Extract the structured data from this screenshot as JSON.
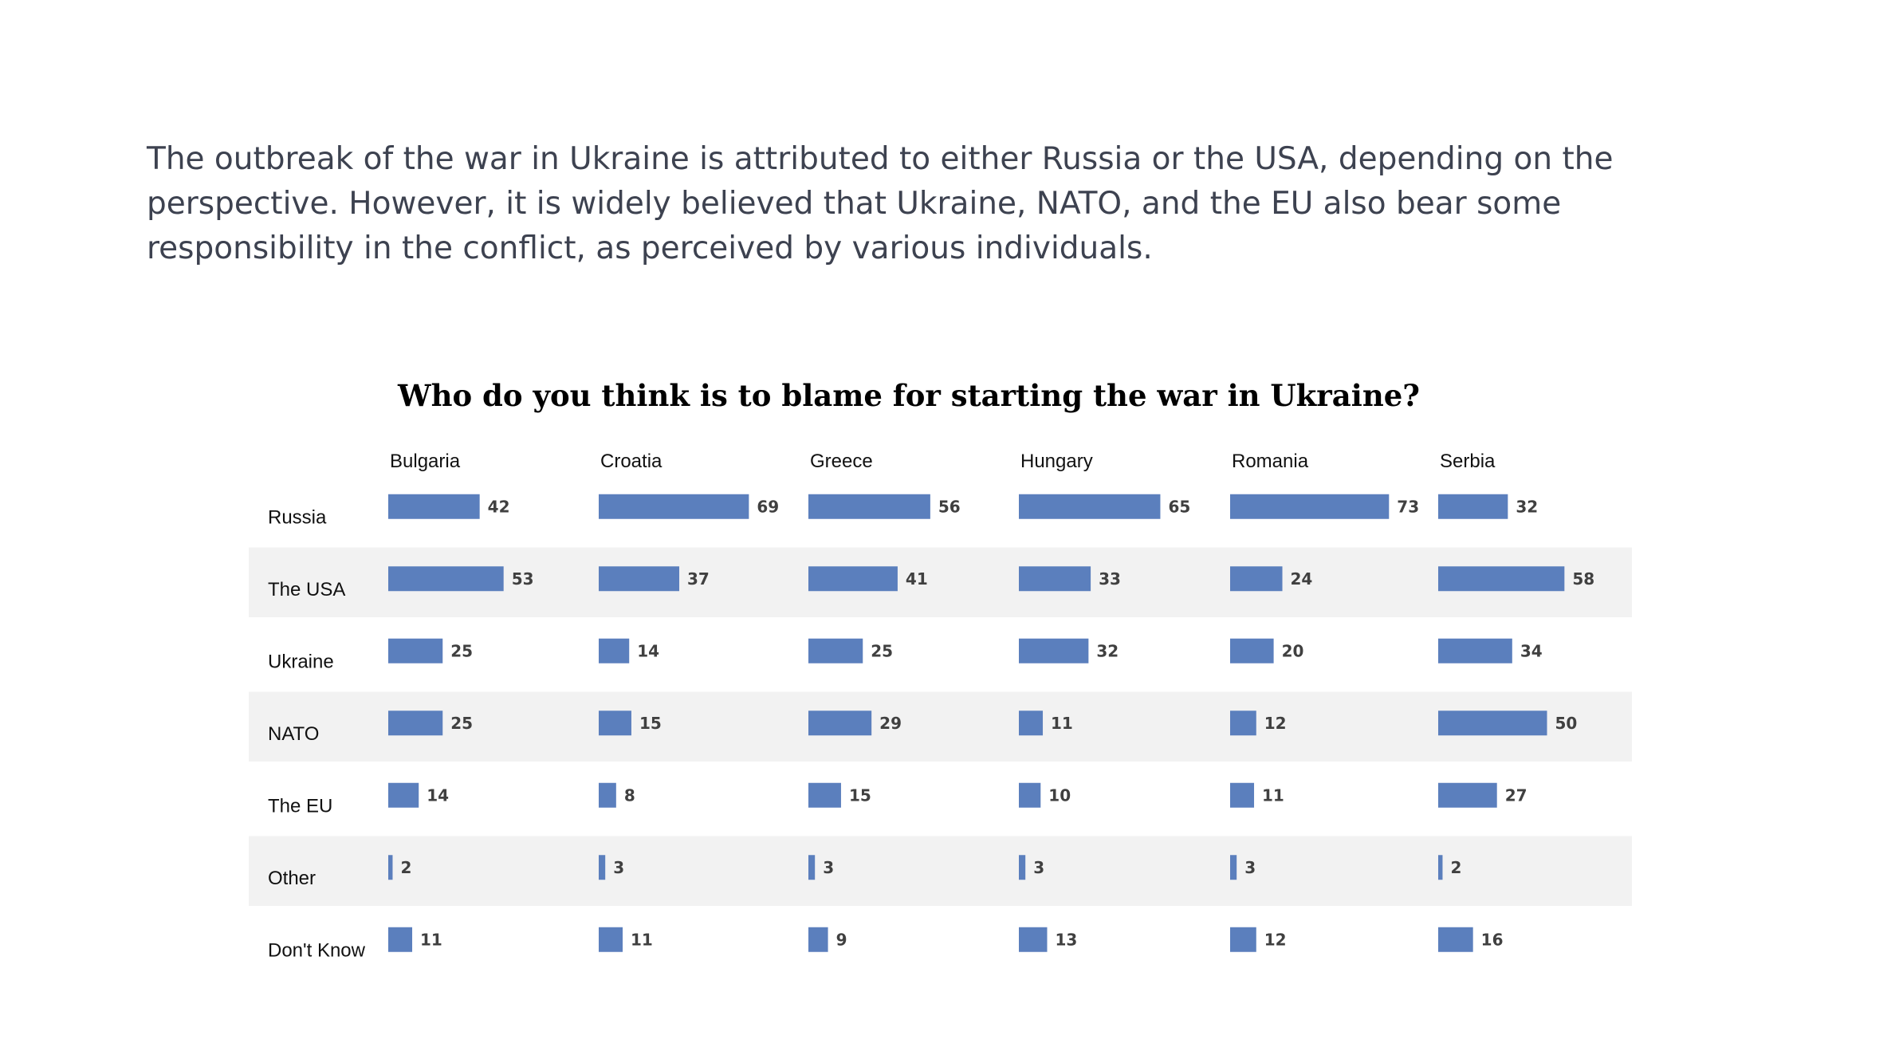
{
  "intro_text": "The outbreak of the war in Ukraine is attributed to either Russia or the USA, depending on the perspective. However, it is widely believed that Ukraine, NATO, and the EU also bear some responsibility in the conflict, as perceived by various individuals.",
  "colors": {
    "bar": "#5b7fbd",
    "band": "#f2f2f2"
  },
  "chart_data": {
    "type": "bar",
    "orientation": "horizontal",
    "layout": "small-multiples",
    "title": "Who do you think is to blame for starting the war in Ukraine?",
    "categories": [
      "Russia",
      "The USA",
      "Ukraine",
      "NATO",
      "The EU",
      "Other",
      "Don't Know"
    ],
    "series": [
      {
        "name": "Bulgaria",
        "values": [
          42,
          53,
          25,
          25,
          14,
          2,
          11
        ]
      },
      {
        "name": "Croatia",
        "values": [
          69,
          37,
          14,
          15,
          8,
          3,
          11
        ]
      },
      {
        "name": "Greece",
        "values": [
          56,
          41,
          25,
          29,
          15,
          3,
          9
        ]
      },
      {
        "name": "Hungary",
        "values": [
          65,
          33,
          32,
          11,
          10,
          3,
          13
        ]
      },
      {
        "name": "Romania",
        "values": [
          73,
          24,
          20,
          12,
          11,
          3,
          12
        ]
      },
      {
        "name": "Serbia",
        "values": [
          32,
          58,
          34,
          50,
          27,
          2,
          16
        ]
      }
    ],
    "banded_rows": true,
    "grid": false,
    "legend": "none"
  }
}
